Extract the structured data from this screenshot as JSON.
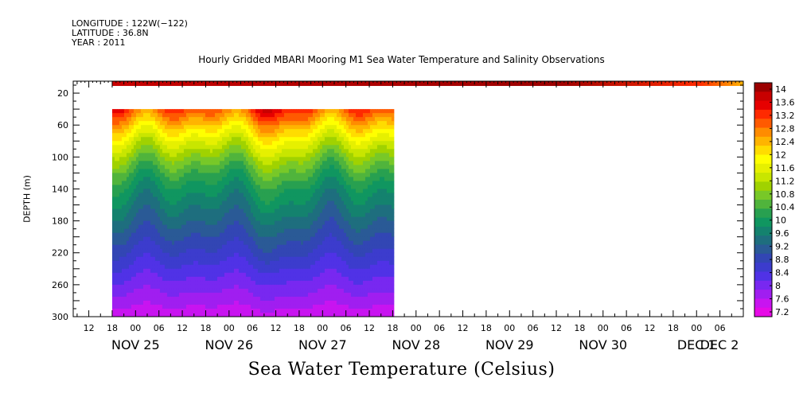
{
  "header": {
    "longitude": "LONGITUDE : 122W(−122)",
    "latitude": "LATITUDE : 36.8N",
    "year": "YEAR : 2011",
    "title": "Hourly Gridded MBARI Mooring M1 Sea Water Temperature and Salinity Observations"
  },
  "colorbar": {
    "labels": [
      "14",
      "13.6",
      "13.2",
      "12.8",
      "12.4",
      "12",
      "11.6",
      "11.2",
      "10.8",
      "10.4",
      "10",
      "9.6",
      "9.2",
      "8.8",
      "8.4",
      "8",
      "7.6",
      "7.2"
    ],
    "min": 7.2,
    "max": 14.0,
    "colors": [
      "#9b0000",
      "#c80000",
      "#e60000",
      "#ff2a00",
      "#ff5a00",
      "#ff8c00",
      "#ffb400",
      "#ffdc00",
      "#ffff00",
      "#e6f000",
      "#c8e600",
      "#a0d200",
      "#78c828",
      "#50b43c",
      "#28a050",
      "#109660",
      "#14826e",
      "#1e6e7e",
      "#2a5a96",
      "#3246b4",
      "#3c3ccd",
      "#5032e6",
      "#7828f0",
      "#a01ef0",
      "#c814f0",
      "#e60ae6"
    ]
  },
  "chart_data": {
    "type": "heatmap",
    "title": "Hourly Gridded MBARI Mooring M1 Sea Water Temperature and Salinity Observations",
    "xlabel": "",
    "ylabel": "DEPTH (m)",
    "colorbar_label": "Sea Water Temperature (Celsius)",
    "x_start": "NOV 25 08:00",
    "x_end": "DEC 2 12:00",
    "x_tick_labels": [
      "12",
      "18",
      "00",
      "06",
      "12",
      "18",
      "00",
      "06",
      "12",
      "18",
      "00",
      "06",
      "12",
      "18",
      "00",
      "06",
      "12",
      "18",
      "00",
      "06",
      "12",
      "18",
      "00",
      "06",
      "12",
      "18",
      "00",
      "06"
    ],
    "x_date_labels": [
      "NOV 25",
      "NOV 26",
      "NOV 27",
      "NOV 28",
      "NOV 29",
      "NOV 30",
      "DEC  1",
      "DEC  2"
    ],
    "y_tick_labels": [
      "20",
      "60",
      "100",
      "140",
      "180",
      "220",
      "260",
      "300"
    ],
    "ylim": [
      300,
      5
    ],
    "clim": [
      7.2,
      14.0
    ],
    "surface_band": {
      "depth_range": [
        5,
        10
      ],
      "time_range": [
        "NOV 25 18:00",
        "DEC 2 12:00"
      ],
      "temperature": 13.6,
      "note_end_temperature": 12.4
    },
    "profile_data": {
      "time_range": [
        "NOV 25 18:00",
        "NOV 28 18:00"
      ],
      "depths": [
        40,
        60,
        80,
        100,
        120,
        140,
        160,
        180,
        200,
        220,
        240,
        260,
        280,
        300
      ],
      "temperature_profile_mean": [
        12.9,
        12.1,
        11.4,
        10.8,
        10.3,
        9.9,
        9.6,
        9.3,
        9.0,
        8.7,
        8.4,
        8.1,
        7.8,
        7.5
      ]
    }
  }
}
